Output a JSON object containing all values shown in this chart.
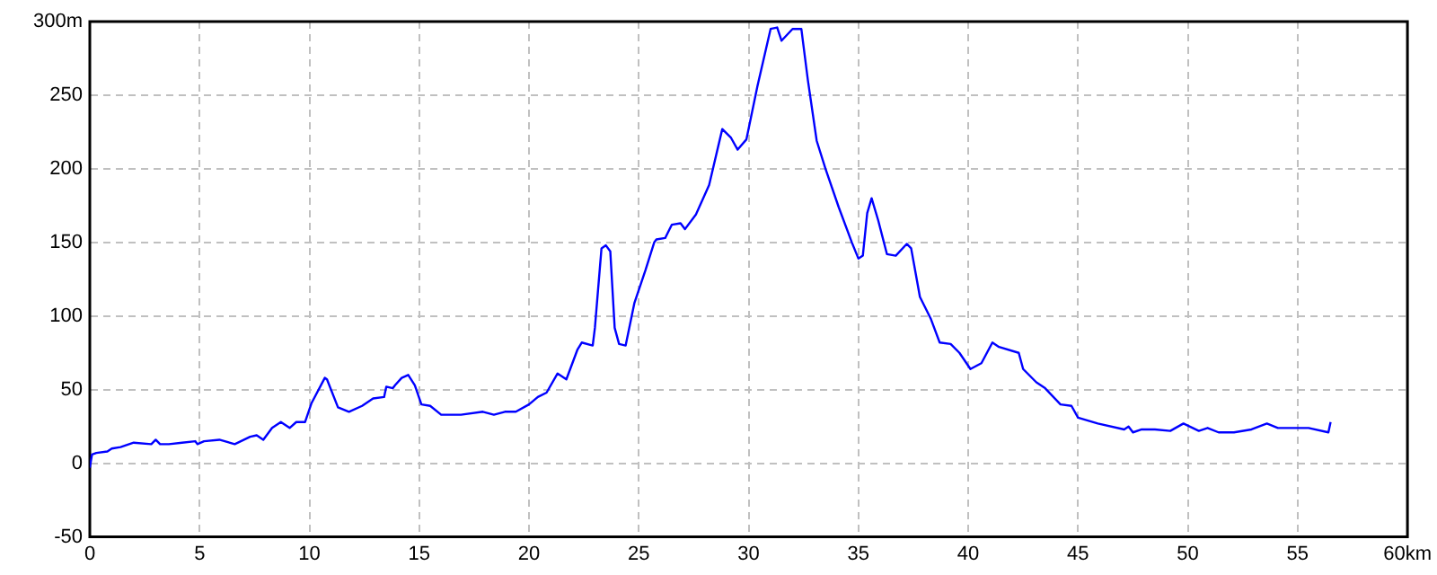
{
  "chart_data": {
    "type": "line",
    "xlim": [
      0,
      60
    ],
    "xticks": [
      0,
      5,
      10,
      15,
      20,
      25,
      30,
      35,
      40,
      45,
      50,
      55,
      {
        "value": 60,
        "label": "60km"
      }
    ],
    "ylim": [
      -50,
      300
    ],
    "yticks": [
      -50,
      0,
      50,
      100,
      150,
      200,
      250,
      {
        "value": 300,
        "label": "300m"
      }
    ],
    "grid": true,
    "legend": false,
    "marker": "none",
    "line_style": "solid",
    "series": [
      {
        "color": "#0000ff",
        "x": [
          0,
          0.1,
          0.3,
          0.8,
          1.0,
          1.4,
          2.0,
          2.8,
          3.0,
          3.2,
          3.6,
          4.2,
          4.8,
          4.9,
          5.2,
          5.9,
          6.6,
          7.3,
          7.6,
          7.9,
          8.3,
          8.7,
          9.1,
          9.4,
          9.8,
          10.1,
          10.7,
          10.8,
          11.3,
          11.8,
          12.4,
          12.9,
          13.4,
          13.5,
          13.8,
          13.9,
          14.2,
          14.5,
          14.8,
          15.1,
          15.5,
          16.0,
          16.9,
          17.9,
          18.4,
          18.9,
          19.4,
          20.0,
          20.4,
          20.8,
          21.3,
          21.7,
          22.2,
          22.4,
          22.9,
          23.0,
          23.3,
          23.5,
          23.7,
          23.9,
          24.1,
          24.4,
          24.8,
          25.3,
          25.7,
          25.8,
          26.2,
          26.5,
          26.9,
          27.1,
          27.6,
          28.2,
          28.8,
          29.2,
          29.5,
          29.9,
          30.4,
          31.0,
          31.3,
          31.5,
          32.0,
          32.4,
          32.7,
          33.1,
          33.5,
          34.1,
          34.7,
          35.0,
          35.2,
          35.4,
          35.6,
          35.9,
          36.3,
          36.7,
          37.2,
          37.4,
          37.8,
          38.3,
          38.7,
          39.2,
          39.6,
          40.1,
          40.6,
          41.1,
          41.4,
          42.3,
          42.5,
          43.1,
          43.5,
          44.2,
          44.7,
          45.0,
          45.9,
          47.1,
          47.3,
          47.5,
          47.9,
          48.5,
          49.2,
          49.8,
          50.5,
          50.9,
          51.4,
          52.1,
          52.9,
          53.6,
          54.1,
          55.5,
          56.4,
          56.5
        ],
        "values": [
          -3,
          6,
          7,
          8,
          10,
          11,
          14,
          13,
          16,
          13,
          13,
          14,
          15,
          13,
          15,
          16,
          13,
          18,
          19,
          16,
          24,
          28,
          24,
          28,
          28,
          41,
          58,
          57,
          38,
          35,
          39,
          44,
          45,
          52,
          51,
          53,
          58,
          60,
          53,
          40,
          39,
          33,
          33,
          35,
          33,
          35,
          35,
          40,
          45,
          48,
          61,
          57,
          77,
          82,
          80,
          92,
          146,
          148,
          144,
          92,
          81,
          80,
          109,
          131,
          150,
          152,
          153,
          162,
          163,
          159,
          169,
          189,
          227,
          221,
          213,
          220,
          256,
          295,
          296,
          287,
          295,
          295,
          260,
          219,
          200,
          174,
          150,
          139,
          141,
          170,
          180,
          165,
          142,
          141,
          149,
          146,
          113,
          98,
          82,
          81,
          75,
          64,
          68,
          82,
          79,
          75,
          64,
          55,
          51,
          40,
          39,
          31,
          27,
          23,
          25,
          21,
          23,
          23,
          22,
          27,
          22,
          24,
          21,
          21,
          23,
          27,
          24,
          24,
          21,
          28
        ]
      }
    ]
  }
}
